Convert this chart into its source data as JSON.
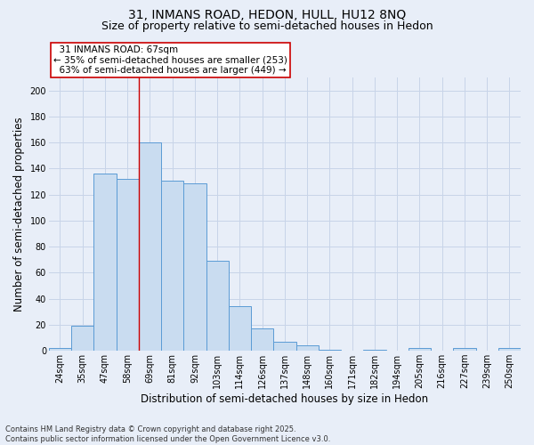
{
  "title_line1": "31, INMANS ROAD, HEDON, HULL, HU12 8NQ",
  "title_line2": "Size of property relative to semi-detached houses in Hedon",
  "xlabel": "Distribution of semi-detached houses by size in Hedon",
  "ylabel": "Number of semi-detached properties",
  "categories": [
    "24sqm",
    "35sqm",
    "47sqm",
    "58sqm",
    "69sqm",
    "81sqm",
    "92sqm",
    "103sqm",
    "114sqm",
    "126sqm",
    "137sqm",
    "148sqm",
    "160sqm",
    "171sqm",
    "182sqm",
    "194sqm",
    "205sqm",
    "216sqm",
    "227sqm",
    "239sqm",
    "250sqm"
  ],
  "values": [
    2,
    19,
    136,
    132,
    160,
    131,
    129,
    69,
    34,
    17,
    7,
    4,
    1,
    0,
    1,
    0,
    2,
    0,
    2,
    0,
    2
  ],
  "bar_color": "#c9dcf0",
  "bar_edge_color": "#5b9bd5",
  "bar_edge_width": 0.7,
  "grid_color": "#c8d4e8",
  "background_color": "#e8eef8",
  "vline_index": 4,
  "property_label": "31 INMANS ROAD: 67sqm",
  "pct_smaller": 35,
  "n_smaller": 253,
  "pct_larger": 63,
  "n_larger": 449,
  "annotation_box_color": "#ffffff",
  "annotation_box_edge": "#cc0000",
  "vline_color": "#cc0000",
  "ylim": [
    0,
    210
  ],
  "yticks": [
    0,
    20,
    40,
    60,
    80,
    100,
    120,
    140,
    160,
    180,
    200
  ],
  "title_fontsize": 10,
  "subtitle_fontsize": 9,
  "axis_label_fontsize": 8.5,
  "tick_fontsize": 7,
  "annotation_fontsize": 7.5,
  "footnote_fontsize": 6,
  "footnote": "Contains HM Land Registry data © Crown copyright and database right 2025.\nContains public sector information licensed under the Open Government Licence v3.0."
}
